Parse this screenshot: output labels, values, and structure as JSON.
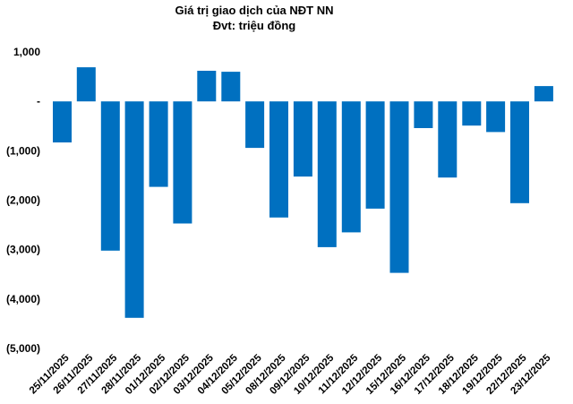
{
  "chart_data": {
    "type": "bar",
    "title": "Giá trị giao dịch của NĐT NN",
    "subtitle": "Đvt: triệu đồng",
    "categories": [
      "25/11/2025",
      "26/11/2025",
      "27/11/2025",
      "28/11/2025",
      "01/12/2025",
      "02/12/2025",
      "03/12/2025",
      "04/12/2025",
      "05/12/2025",
      "08/12/2025",
      "09/12/2025",
      "10/12/2025",
      "11/12/2025",
      "12/12/2025",
      "15/12/2025",
      "16/12/2025",
      "17/12/2025",
      "18/12/2025",
      "19/12/2025",
      "22/12/2025",
      "23/12/2025"
    ],
    "values": [
      -830,
      690,
      -3020,
      -4380,
      -1730,
      -2470,
      620,
      600,
      -940,
      -2350,
      -1520,
      -2950,
      -2650,
      -2170,
      -3470,
      -540,
      -1540,
      -490,
      -620,
      -2060,
      310
    ],
    "yticks": [
      1000,
      0,
      -1000,
      -2000,
      -3000,
      -4000,
      -5000
    ],
    "ytick_labels": [
      "1,000",
      "-",
      "(1,000)",
      "(2,000)",
      "(3,000)",
      "(4,000)",
      "(5,000)"
    ],
    "ylim": [
      -5000,
      1000
    ],
    "bar_color": "#0070C0",
    "grid": false,
    "legend": "none"
  }
}
